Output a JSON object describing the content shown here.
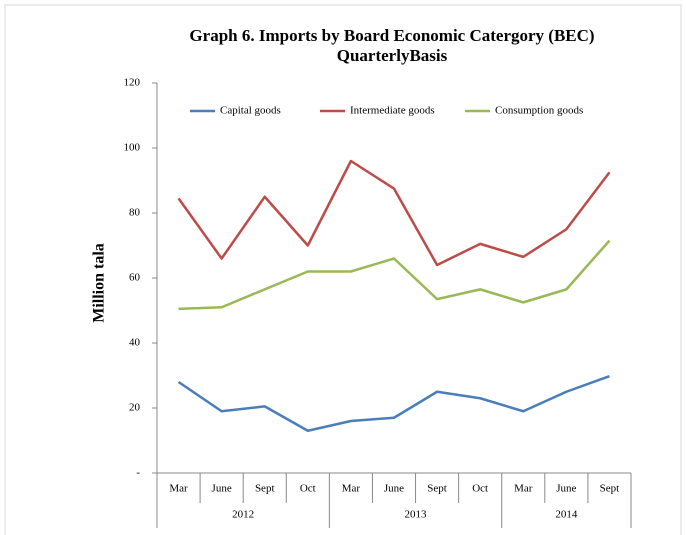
{
  "chart_data": {
    "type": "line",
    "title": "Graph 6. Imports by Board Economic Catergory (BEC)",
    "subtitle": "QuarterlyBasis",
    "y_label": "Million tala",
    "groups": [
      {
        "name": "2012",
        "categories": [
          "Mar",
          "June",
          "Sept",
          "Oct"
        ]
      },
      {
        "name": "2013",
        "categories": [
          "Mar",
          "June",
          "Sept",
          "Oct"
        ]
      },
      {
        "name": "2014",
        "categories": [
          "Mar",
          "June",
          "Sept"
        ]
      }
    ],
    "series": [
      {
        "name": "Capital goods",
        "color": "#4a7ebb",
        "values": [
          28,
          19,
          20.5,
          13,
          16,
          17,
          25,
          23,
          19,
          25,
          29.8
        ]
      },
      {
        "name": "Intermediate goods",
        "color": "#be4b48",
        "values": [
          84.5,
          66,
          85,
          70,
          96,
          87.5,
          64,
          70.5,
          66.5,
          75,
          92.5
        ]
      },
      {
        "name": "Consumption goods",
        "color": "#98b954",
        "values": [
          50.5,
          51,
          56.5,
          62,
          62,
          66,
          53.5,
          56.5,
          52.5,
          56.5,
          71.5
        ]
      }
    ],
    "ylim": [
      0,
      120
    ],
    "yticks": [
      {
        "value": 0,
        "label": "-"
      },
      20,
      40,
      60,
      80,
      100,
      120
    ],
    "legend": "top"
  }
}
